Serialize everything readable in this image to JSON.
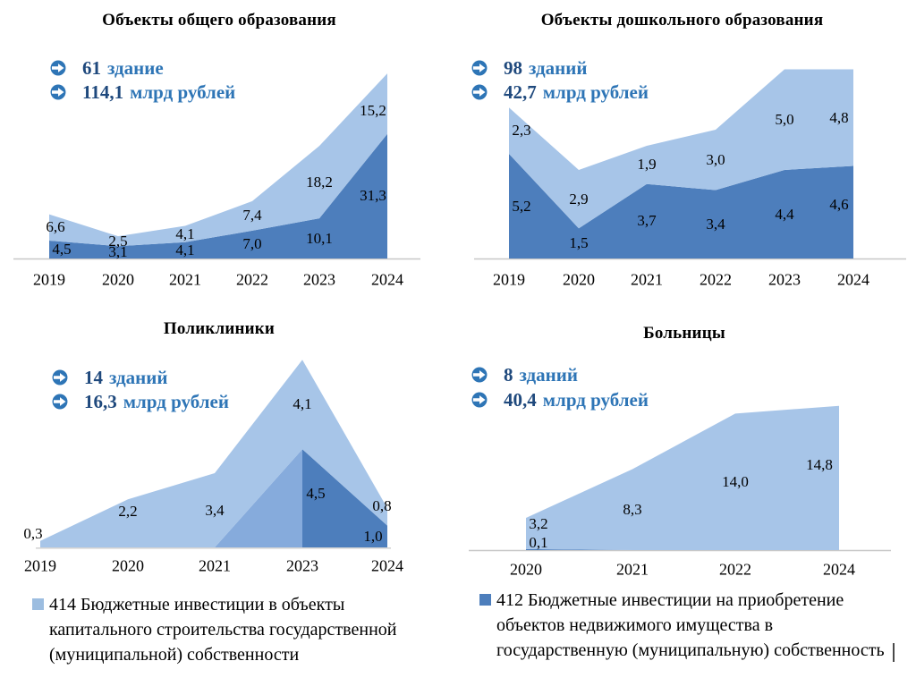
{
  "colors": {
    "light_series": "#a7c5e8",
    "dark_series": "#4d7ebc",
    "overlap_series": "#86abdc",
    "axis_line": "#c8c8c8",
    "stat_number": "#1f497d",
    "stat_unit": "#2e75b6",
    "bullet_icon": "#2e75b6",
    "legend_414_swatch": "#9cbde0",
    "legend_412_swatch": "#4d7ebc"
  },
  "icons": {
    "bullet": "circled-right-arrow-icon"
  },
  "chart_data": [
    {
      "id": "general-education",
      "type": "area",
      "title": "Объекты общего образования",
      "stats": [
        {
          "number": "61",
          "unit": "здание"
        },
        {
          "number": "114,1",
          "unit": "млрд рублей"
        }
      ],
      "years": [
        "2019",
        "2020",
        "2021",
        "2022",
        "2023",
        "2024"
      ],
      "series": [
        {
          "name": "412",
          "role": "dark",
          "values": [
            4.5,
            3.1,
            4.1,
            7.0,
            10.1,
            31.3
          ],
          "labels": [
            "4,5",
            "3,1",
            "4,1",
            "7,0",
            "10,1",
            "31,3"
          ]
        },
        {
          "name": "414",
          "role": "light",
          "values": [
            6.6,
            2.5,
            4.1,
            7.4,
            18.2,
            15.2
          ],
          "labels": [
            "6,6",
            "2,5",
            "4,1",
            "7,4",
            "18,2",
            "15,2"
          ]
        }
      ],
      "stacking": "stacked",
      "legend_position": "none",
      "grid": false
    },
    {
      "id": "preschool-education",
      "type": "area",
      "title": "Объекты дошкольного образования",
      "stats": [
        {
          "number": "98",
          "unit": "зданий"
        },
        {
          "number": "42,7",
          "unit": "млрд рублей"
        }
      ],
      "years": [
        "2019",
        "2020",
        "2021",
        "2022",
        "2023",
        "2024"
      ],
      "series": [
        {
          "name": "412",
          "role": "dark",
          "values": [
            5.2,
            1.5,
            3.7,
            3.4,
            4.4,
            4.6
          ],
          "labels": [
            "5,2",
            "1,5",
            "3,7",
            "3,4",
            "4,4",
            "4,6"
          ]
        },
        {
          "name": "414",
          "role": "light",
          "values": [
            2.3,
            2.9,
            1.9,
            3.0,
            5.0,
            4.8
          ],
          "labels": [
            "2,3",
            "2,9",
            "1,9",
            "3,0",
            "5,0",
            "4,8"
          ]
        }
      ],
      "stacking": "stacked",
      "legend_position": "none",
      "grid": false
    },
    {
      "id": "polyclinics",
      "type": "area",
      "title": "Поликлиники",
      "stats": [
        {
          "number": "14",
          "unit": "зданий"
        },
        {
          "number": "16,3",
          "unit": "млрд рублей"
        }
      ],
      "years": [
        "2019",
        "2020",
        "2021",
        "2023",
        "2024"
      ],
      "series": [
        {
          "name": "412",
          "role": "dark",
          "values": [
            0,
            0,
            0,
            4.5,
            1.0
          ],
          "labels": [
            null,
            null,
            null,
            "4,5",
            "1,0"
          ]
        },
        {
          "name": "414",
          "role": "light",
          "values": [
            0.3,
            2.2,
            3.4,
            4.1,
            0.8
          ],
          "labels": [
            "0,3",
            "2,2",
            "3,4",
            "4,1",
            "0,8"
          ]
        }
      ],
      "stacking": "stacked",
      "legend_position": "none",
      "grid": false
    },
    {
      "id": "hospitals",
      "type": "area",
      "title": "Больницы",
      "stats": [
        {
          "number": "8",
          "unit": "зданий"
        },
        {
          "number": "40,4",
          "unit": "млрд рублей"
        }
      ],
      "years": [
        "2020",
        "2021",
        "2022",
        "2024"
      ],
      "series": [
        {
          "name": "412",
          "role": "dark",
          "values": [
            0.1,
            0,
            0,
            0
          ],
          "labels": [
            "0,1",
            null,
            null,
            null
          ]
        },
        {
          "name": "414",
          "role": "light",
          "values": [
            3.2,
            8.3,
            14.0,
            14.8
          ],
          "labels": [
            "3,2",
            "8,3",
            "14,0",
            "14,8"
          ]
        }
      ],
      "stacking": "stacked",
      "legend_position": "none",
      "grid": false
    }
  ],
  "legends": {
    "legend_414": {
      "lines": [
        "414 Бюджетные инвестиции в объекты",
        "капитального строительства государственной",
        "(муниципальной) собственности"
      ]
    },
    "legend_412": {
      "lines": [
        "412 Бюджетные инвестиции на приобретение",
        "объектов недвижимого имущества в",
        "государственную (муниципальную) собственность"
      ]
    }
  }
}
